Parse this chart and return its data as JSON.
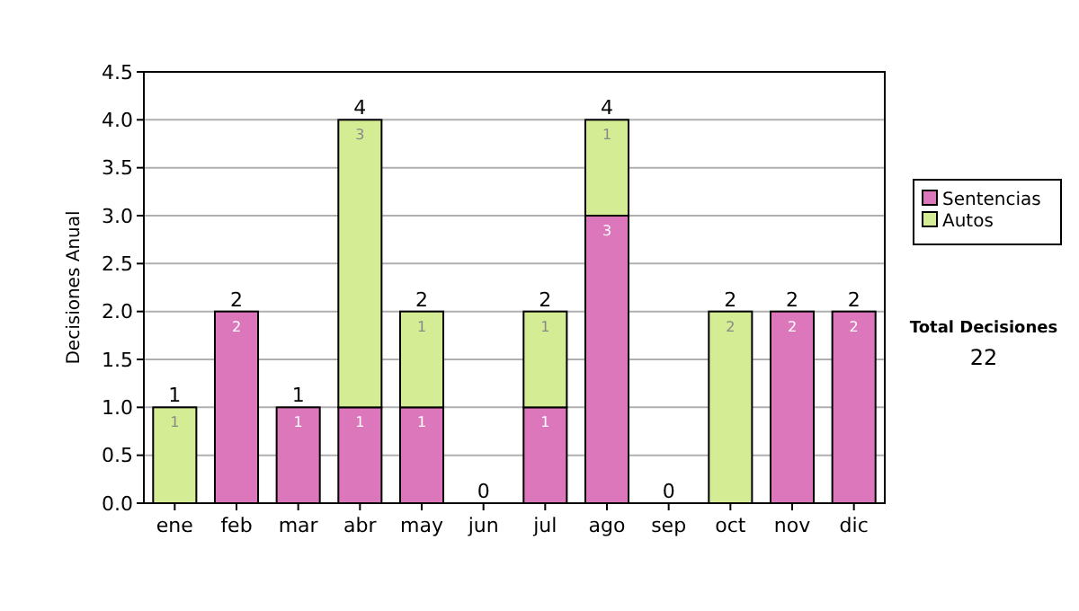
{
  "chart_data": {
    "type": "bar",
    "stacked": true,
    "ylabel": "Decisiones Anual",
    "categories": [
      "ene",
      "feb",
      "mar",
      "abr",
      "may",
      "jun",
      "jul",
      "ago",
      "sep",
      "oct",
      "nov",
      "dic"
    ],
    "series": [
      {
        "name": "Sentencias",
        "color": "#dd77bb",
        "values": [
          0,
          2,
          1,
          1,
          1,
          0,
          1,
          3,
          0,
          0,
          2,
          2
        ],
        "value_labels": [
          null,
          "2",
          "1",
          "1",
          "1",
          null,
          "1",
          "3",
          null,
          null,
          "2",
          "2"
        ]
      },
      {
        "name": "Autos",
        "color": "#d4ec94",
        "values": [
          1,
          0,
          0,
          3,
          1,
          0,
          1,
          1,
          0,
          2,
          0,
          0
        ],
        "value_labels": [
          "1",
          null,
          null,
          "3",
          "1",
          null,
          "1",
          "1",
          null,
          "2",
          null,
          null
        ]
      }
    ],
    "totals": [
      "1",
      "2",
      "1",
      "4",
      "2",
      "0",
      "2",
      "4",
      "0",
      "2",
      "2",
      "2"
    ],
    "ylim": [
      0,
      4.5
    ],
    "yticks": [
      {
        "value": 0,
        "label": "0.0"
      },
      {
        "value": 0.5,
        "label": "0.5"
      },
      {
        "value": 1,
        "label": "1.0"
      },
      {
        "value": 1.5,
        "label": "1.5"
      },
      {
        "value": 2,
        "label": "2.0"
      },
      {
        "value": 2.5,
        "label": "2.5"
      },
      {
        "value": 3,
        "label": "3.0"
      },
      {
        "value": 3.5,
        "label": "3.5"
      },
      {
        "value": 4,
        "label": "4.0"
      },
      {
        "value": 4.5,
        "label": "4.5"
      }
    ],
    "grid": "y",
    "legend": "right",
    "annotations": [
      "Total Decisiones",
      "22"
    ]
  }
}
